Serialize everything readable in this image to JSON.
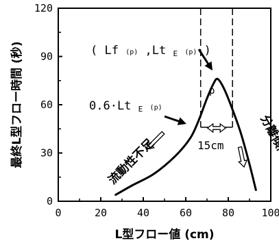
{
  "chart_data": {
    "type": "line",
    "xlabel": "L型フロー値 (cm)",
    "ylabel": "最終L型フロー時間 (秒)",
    "xlim": [
      0,
      100
    ],
    "ylim": [
      0,
      120
    ],
    "xticks": [
      "0",
      "20",
      "40",
      "60",
      "80",
      "100"
    ],
    "yticks": [
      "0",
      "30",
      "60",
      "90",
      "120"
    ],
    "grid": false,
    "series": [
      {
        "x": [
          27,
          35,
          45,
          55,
          62,
          66,
          70,
          73,
          75,
          78,
          82,
          86,
          90,
          93
        ],
        "y": [
          4,
          10,
          17,
          28,
          39,
          50,
          64,
          73,
          76,
          70,
          57,
          42,
          23,
          7
        ]
      }
    ],
    "peak_box": {
      "x": [
        67,
        82
      ],
      "y": [
        46,
        120
      ]
    },
    "annotations": {
      "peak_label": "p",
      "coord_label_main": "( Lf",
      "coord_label_sub1": "(p)",
      "coord_label_mid": ",Lt",
      "coord_label_e": "E",
      "coord_label_sub2": "(p)",
      "coord_label_close": ")",
      "ratio_label_main": "0.6·Lt",
      "ratio_label_e": "E",
      "ratio_label_sub": "(p)",
      "width_label": "15cm",
      "left_region": "流動性不足",
      "right_region": "分離傾向"
    }
  }
}
